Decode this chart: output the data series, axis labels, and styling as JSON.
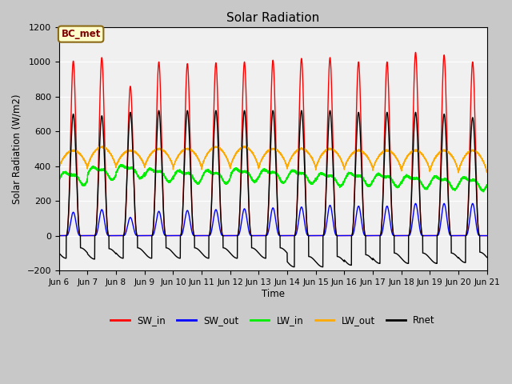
{
  "title": "Solar Radiation",
  "ylabel": "Solar Radiation (W/m2)",
  "xlabel": "Time",
  "ylim": [
    -200,
    1200
  ],
  "n_days": 15,
  "xtick_labels": [
    "Jun 6",
    "Jun 7",
    "Jun 8",
    "Jun 9",
    "Jun 10",
    "Jun 11",
    "Jun 12",
    "Jun 13",
    "Jun 14",
    "Jun 15",
    "Jun 16",
    "Jun 17",
    "Jun 18",
    "Jun 19",
    "Jun 20",
    "Jun 21"
  ],
  "fig_bg_color": "#c8c8c8",
  "plot_bg_color": "#f0f0f0",
  "annotation_text": "BC_met",
  "annotation_bg": "#ffffcc",
  "annotation_edge": "#8b6914",
  "annotation_text_color": "#800000",
  "colors": {
    "SW_in": "#ff0000",
    "SW_out": "#0000ff",
    "LW_in": "#00ee00",
    "LW_out": "#ffaa00",
    "Rnet": "#000000"
  },
  "sw_peaks": [
    1005,
    1025,
    860,
    1000,
    990,
    995,
    1000,
    1010,
    1020,
    1025,
    1000,
    1000,
    1055,
    1040,
    1000
  ],
  "sw_out_peaks": [
    135,
    150,
    105,
    140,
    145,
    150,
    155,
    160,
    165,
    175,
    170,
    170,
    185,
    185,
    185
  ],
  "lw_out_day": [
    490,
    510,
    490,
    500,
    500,
    510,
    510,
    500,
    500,
    500,
    490,
    490,
    490,
    490,
    490
  ],
  "lw_out_night": [
    385,
    390,
    395,
    390,
    385,
    385,
    385,
    385,
    385,
    380,
    380,
    375,
    370,
    365,
    360
  ],
  "lw_in_base": [
    335,
    365,
    375,
    355,
    345,
    345,
    355,
    350,
    345,
    330,
    330,
    325,
    315,
    310,
    305
  ],
  "rnet_peaks": [
    700,
    690,
    710,
    720,
    720,
    720,
    720,
    720,
    720,
    720,
    710,
    710,
    710,
    700,
    680
  ],
  "rnet_night": [
    -100,
    -105,
    -100,
    -100,
    -100,
    -100,
    -100,
    -100,
    -150,
    -150,
    -140,
    -130,
    -130,
    -130,
    -125
  ]
}
